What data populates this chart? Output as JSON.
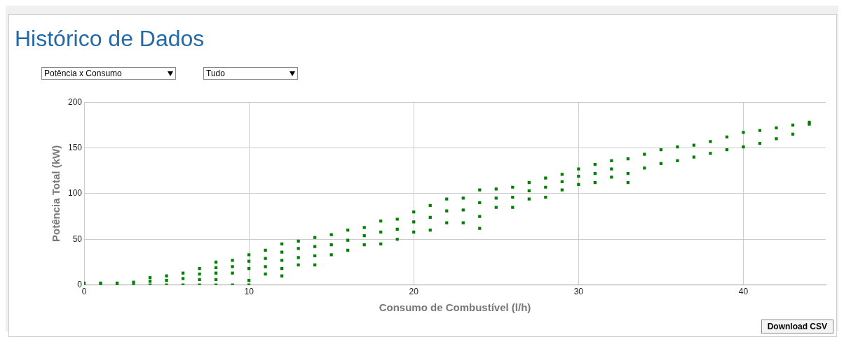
{
  "chart_data": {
    "type": "scatter",
    "title": "Histórico de Dados",
    "xlabel": "Consumo de Combustível (l/h)",
    "ylabel": "Potência Total (kW)",
    "annotations": [
      "Potência x Consumo",
      "Tudo",
      "Download CSV"
    ],
    "xlim": [
      0,
      45
    ],
    "xticks": [
      0,
      10,
      20,
      30,
      40
    ],
    "ylim": [
      0,
      200
    ],
    "yticks": [
      0,
      50,
      100,
      150,
      200
    ],
    "grid": true,
    "legend": false,
    "marker": "square",
    "series": [
      {
        "color": "#008000",
        "x": [
          0,
          0,
          1,
          1,
          2,
          2,
          3,
          3,
          4,
          4,
          4,
          5,
          5,
          5,
          6,
          6,
          6,
          7,
          7,
          7,
          7,
          8,
          8,
          8,
          8,
          8,
          9,
          9,
          9,
          9,
          10,
          10,
          10,
          10,
          10,
          11,
          11,
          11,
          11,
          12,
          12,
          12,
          12,
          12,
          13,
          13,
          13,
          13,
          14,
          14,
          14,
          14,
          15,
          15,
          15,
          16,
          16,
          16,
          17,
          17,
          17,
          18,
          18,
          18,
          19,
          19,
          19,
          20,
          20,
          20,
          21,
          21,
          21,
          22,
          22,
          22,
          23,
          23,
          23,
          24,
          24,
          24,
          24,
          25,
          25,
          25,
          26,
          26,
          26,
          27,
          27,
          27,
          28,
          28,
          28,
          29,
          29,
          29,
          30,
          30,
          30,
          31,
          31,
          31,
          32,
          32,
          32,
          33,
          33,
          33,
          34,
          34,
          35,
          35,
          36,
          36,
          37,
          37,
          38,
          38,
          39,
          39,
          40,
          40,
          41,
          41,
          42,
          42,
          43,
          43,
          44,
          44
        ],
        "values": [
          0,
          2,
          0,
          2,
          0,
          2,
          0,
          3,
          0,
          4,
          8,
          0,
          5,
          10,
          0,
          7,
          13,
          0,
          6,
          12,
          18,
          0,
          6,
          13,
          19,
          25,
          0,
          13,
          20,
          27,
          0,
          5,
          18,
          26,
          33,
          12,
          20,
          29,
          38,
          10,
          18,
          27,
          36,
          45,
          22,
          30,
          40,
          48,
          22,
          32,
          42,
          52,
          33,
          44,
          55,
          38,
          49,
          60,
          44,
          54,
          63,
          45,
          58,
          70,
          50,
          61,
          72,
          58,
          69,
          80,
          60,
          74,
          87,
          68,
          81,
          94,
          68,
          82,
          95,
          62,
          75,
          90,
          104,
          85,
          95,
          105,
          85,
          96,
          107,
          94,
          103,
          112,
          96,
          107,
          117,
          104,
          113,
          121,
          110,
          119,
          127,
          112,
          122,
          132,
          118,
          127,
          136,
          112,
          122,
          138,
          128,
          143,
          133,
          148,
          136,
          151,
          140,
          153,
          144,
          157,
          148,
          162,
          151,
          167,
          155,
          169,
          160,
          172,
          165,
          175,
          176,
          178
        ]
      }
    ]
  }
}
